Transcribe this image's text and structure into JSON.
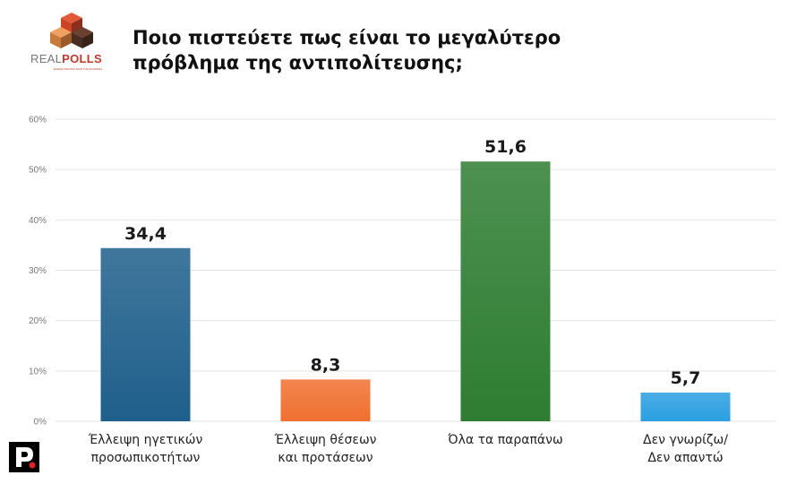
{
  "logo": {
    "brand_prefix": "REAL",
    "brand_suffix": "POLLS",
    "tagline": "ΕΞΕΡΕΥΝΩΝΤΑΣ ΜΑΖΙ ΤΗΝ ΚΟΙΝΩΝΙΑ"
  },
  "chart_data": {
    "type": "bar",
    "title": "Ποιο πιστεύετε πως είναι το μεγαλύτερο πρόβλημα της αντιπολίτευσης;",
    "categories": [
      [
        "Έλλειψη ηγετικών",
        "προσωπικοτήτων"
      ],
      [
        "Έλλειψη θέσεων",
        "και προτάσεων"
      ],
      [
        "Όλα τα παραπάνω"
      ],
      [
        "Δεν γνωρίζω/",
        "Δεν απαντώ"
      ]
    ],
    "values": [
      34.4,
      8.3,
      51.6,
      5.7
    ],
    "value_labels": [
      "34,4",
      "8,3",
      "51,6",
      "5,7"
    ],
    "ylim": [
      0,
      60
    ],
    "yticks": [
      0,
      10,
      20,
      30,
      40,
      50,
      60
    ],
    "ytick_labels": [
      "0%",
      "10%",
      "20%",
      "30%",
      "40%",
      "50%",
      "60%"
    ],
    "grid": true,
    "xlabel": "",
    "ylabel": "",
    "colors": [
      "#1f5f8b",
      "#f07030",
      "#2e7d32",
      "#2b9fe0"
    ]
  }
}
